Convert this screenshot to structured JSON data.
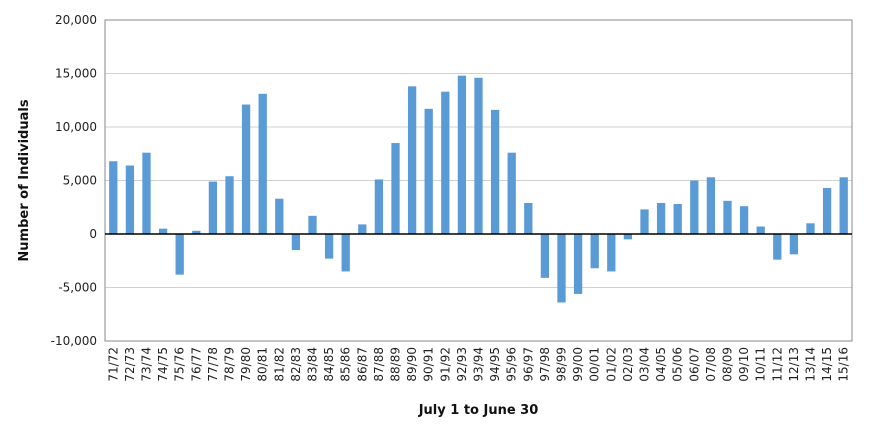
{
  "chart_data": {
    "type": "bar",
    "title": "",
    "xlabel": "July 1 to June 30",
    "ylabel": "Number of Individuals",
    "ylim": [
      -10000,
      20000
    ],
    "yticks": [
      -10000,
      -5000,
      0,
      5000,
      10000,
      15000,
      20000
    ],
    "ytick_labels": [
      "-10,000",
      "-5,000",
      "0",
      "5,000",
      "10,000",
      "15,000",
      "20,000"
    ],
    "grid": true,
    "legend": "none",
    "bar_color": "#5b9bd5",
    "categories": [
      "71/72",
      "72/73",
      "73/74",
      "74/75",
      "75/76",
      "76/77",
      "77/78",
      "78/79",
      "79/80",
      "80/81",
      "81/82",
      "82/83",
      "83/84",
      "84/85",
      "85/86",
      "86/87",
      "87/88",
      "88/89",
      "89/90",
      "90/91",
      "91/92",
      "92/93",
      "93/94",
      "94/95",
      "95/96",
      "96/97",
      "97/98",
      "98/99",
      "99/00",
      "00/01",
      "01/02",
      "02/03",
      "03/04",
      "04/05",
      "05/06",
      "06/07",
      "07/08",
      "08/09",
      "09/10",
      "10/11",
      "11/12",
      "12/13",
      "13/14",
      "14/15",
      "15/16"
    ],
    "values": [
      6800,
      6400,
      7600,
      500,
      -3800,
      300,
      4900,
      5400,
      12100,
      13100,
      3300,
      -1500,
      1700,
      -2300,
      -3500,
      900,
      5100,
      8500,
      13800,
      11700,
      13300,
      14800,
      14600,
      11600,
      7600,
      2900,
      -4100,
      -6400,
      -5600,
      -3200,
      -3500,
      -500,
      2300,
      2900,
      2800,
      5000,
      5300,
      3100,
      2600,
      700,
      -2400,
      -1900,
      1000,
      4300,
      5300
    ]
  }
}
